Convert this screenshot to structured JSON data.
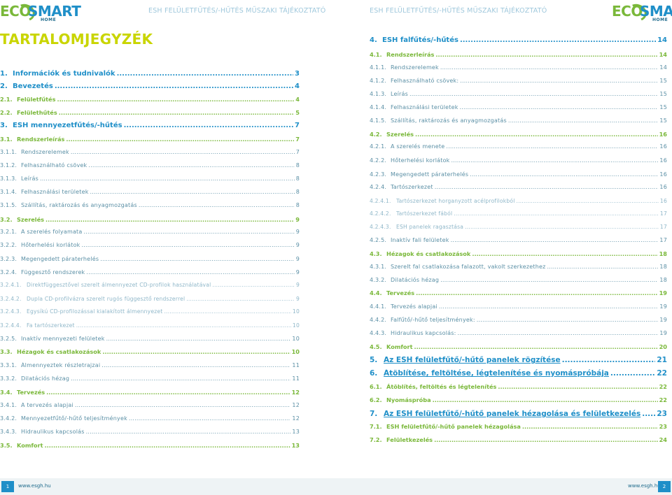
{
  "header": {
    "left_text": "ESH FELÜLETFŰTÉS/-HŰTÉS MŰSZAKI TÁJÉKOZTATÓ",
    "right_text": "ESH FELÜLETFŰTÉS/-HŰTÉS MŰSZAKI TÁJÉKOZTATÓ",
    "logo": {
      "eco": "ECO",
      "smart": "SMART",
      "home": "HOME"
    }
  },
  "toc_title": "TARTALOMJEGYZÉK",
  "left_toc": [
    {
      "level": 1,
      "num": "1.",
      "text": "Információk és tudnivalók",
      "page": "3"
    },
    {
      "level": 1,
      "num": "2.",
      "text": "Bevezetés",
      "page": "4"
    },
    {
      "level": 2,
      "num": "2.1.",
      "text": "Felületfűtés",
      "page": "4"
    },
    {
      "level": 2,
      "num": "2.2.",
      "text": "Felülethűtés",
      "page": "5"
    },
    {
      "level": 1,
      "num": "3.",
      "text": "ESH mennyezetfűtés/-hűtés",
      "page": "7"
    },
    {
      "level": 2,
      "num": "3.1.",
      "text": "Rendszerleírás",
      "page": "7"
    },
    {
      "level": 3,
      "num": "3.1.1.",
      "text": "Rendszerelemek",
      "page": "7"
    },
    {
      "level": 3,
      "num": "3.1.2.",
      "text": "Felhasználható csövek",
      "page": "8"
    },
    {
      "level": 3,
      "num": "3.1.3.",
      "text": "Leírás",
      "page": "8"
    },
    {
      "level": 3,
      "num": "3.1.4.",
      "text": "Felhasználási területek",
      "page": "8"
    },
    {
      "level": 3,
      "num": "3.1.5.",
      "text": "Szállítás, raktározás és anyagmozgatás",
      "page": "8"
    },
    {
      "level": 2,
      "num": "3.2.",
      "text": "Szerelés",
      "page": "9"
    },
    {
      "level": 3,
      "num": "3.2.1.",
      "text": "A szerelés folyamata",
      "page": "9"
    },
    {
      "level": 3,
      "num": "3.2.2.",
      "text": "Hőterhelési korlátok",
      "page": "9"
    },
    {
      "level": 3,
      "num": "3.2.3.",
      "text": "Megengedett páraterhelés",
      "page": "9"
    },
    {
      "level": 3,
      "num": "3.2.4.",
      "text": "Függesztő rendszerek",
      "page": "9"
    },
    {
      "level": 4,
      "num": "3.2.4.1.",
      "text": "Direktfüggesztővel szerelt álmennyezet CD-profilok használatával",
      "page": "9"
    },
    {
      "level": 4,
      "num": "3.2.4.2.",
      "text": "Dupla CD-profilvázra szerelt rugós függesztő rendszerrel",
      "page": "9"
    },
    {
      "level": 4,
      "num": "3.2.4.3.",
      "text": "Egysíkú CD-profilozással kialakított álmennyezet",
      "page": "10"
    },
    {
      "level": 4,
      "num": "3.2.4.4.",
      "text": "Fa tartószerkezet",
      "page": "10"
    },
    {
      "level": 3,
      "num": "3.2.5.",
      "text": "Inaktív mennyezeti felületek",
      "page": "10"
    },
    {
      "level": 2,
      "num": "3.3.",
      "text": "Hézagok és csatlakozások",
      "page": "10"
    },
    {
      "level": 3,
      "num": "3.3.1.",
      "text": "Álmennyeztek részletrajzai",
      "page": "11"
    },
    {
      "level": 3,
      "num": "3.3.2.",
      "text": "Dilatációs hézag",
      "page": "11"
    },
    {
      "level": 2,
      "num": "3.4.",
      "text": "Tervezés",
      "page": "12"
    },
    {
      "level": 3,
      "num": "3.4.1.",
      "text": "A tervezés alapjai",
      "page": "12"
    },
    {
      "level": 3,
      "num": "3.4.2.",
      "text": "Mennyezetfűtő/-hűtő teljesítmények",
      "page": "12"
    },
    {
      "level": 3,
      "num": "3.4.3.",
      "text": "Hidraulikus kapcsolás",
      "page": "13"
    },
    {
      "level": 2,
      "num": "3.5.",
      "text": "Komfort",
      "page": "13"
    }
  ],
  "right_toc": [
    {
      "level": 1,
      "num": "4.",
      "text": "ESH falfűtés/-hűtés",
      "page": "14"
    },
    {
      "level": 2,
      "num": "4.1.",
      "text": "Rendszerleírás",
      "page": "14"
    },
    {
      "level": 3,
      "num": "4.1.1.",
      "text": "Rendszerelemek",
      "page": "14"
    },
    {
      "level": 3,
      "num": "4.1.2.",
      "text": "Felhasználható csövek:",
      "page": "15"
    },
    {
      "level": 3,
      "num": "4.1.3.",
      "text": "Leírás",
      "page": "15"
    },
    {
      "level": 3,
      "num": "4.1.4.",
      "text": "Felhasználási területek",
      "page": "15"
    },
    {
      "level": 3,
      "num": "4.1.5.",
      "text": "Szállítás, raktározás és anyagmozgatás",
      "page": "15"
    },
    {
      "level": 2,
      "num": "4.2.",
      "text": "Szerelés",
      "page": "16"
    },
    {
      "level": 3,
      "num": "4.2.1.",
      "text": "A szerelés menete",
      "page": "16"
    },
    {
      "level": 3,
      "num": "4.2.2.",
      "text": "Hőterhelési korlátok",
      "page": "16"
    },
    {
      "level": 3,
      "num": "4.2.3.",
      "text": "Megengedett páraterhelés",
      "page": "16"
    },
    {
      "level": 3,
      "num": "4.2.4.",
      "text": "Tartószerkezet",
      "page": "16"
    },
    {
      "level": 4,
      "num": "4.2.4.1.",
      "text": "Tartószerkezet horganyzott acélprofilokból",
      "page": "16"
    },
    {
      "level": 4,
      "num": "4.2.4.2.",
      "text": "Tartószerkezet fából",
      "page": "17"
    },
    {
      "level": 4,
      "num": "4.2.4.3.",
      "text": "ESH panelek ragasztása",
      "page": "17"
    },
    {
      "level": 3,
      "num": "4.2.5.",
      "text": "Inaktív fali felületek",
      "page": "17"
    },
    {
      "level": 2,
      "num": "4.3.",
      "text": "Hézagok és csatlakozások",
      "page": "18"
    },
    {
      "level": 3,
      "num": "4.3.1.",
      "text": "Szerelt fal csatlakozása falazott, vakolt szerkezethez",
      "page": "18"
    },
    {
      "level": 3,
      "num": "4.3.2.",
      "text": "Dilatációs hézag",
      "page": "18"
    },
    {
      "level": 2,
      "num": "4.4.",
      "text": "Tervezés",
      "page": "19"
    },
    {
      "level": 3,
      "num": "4.4.1.",
      "text": "Tervezés alapjai",
      "page": "19"
    },
    {
      "level": 3,
      "num": "4.4.2.",
      "text": "Falfűtő/-hűtő teljesítmények:",
      "page": "19"
    },
    {
      "level": 3,
      "num": "4.4.3.",
      "text": "Hidraulikus kapcsolás:",
      "page": "19"
    },
    {
      "level": 2,
      "num": "4.5.",
      "text": "Komfort",
      "page": "20"
    },
    {
      "level": 5,
      "num": "5.",
      "text": "Az ESH felületfűtő/-hűtő panelek rögzítése",
      "page": "21"
    },
    {
      "level": 5,
      "num": "6.",
      "text": "Átöblítése, feltöltése, légtelenítése és nyomáspróbája",
      "page": "22"
    },
    {
      "level": 2,
      "num": "6.1.",
      "text": "Átöblítés, feltöltés és légtelenítés",
      "page": "22"
    },
    {
      "level": 2,
      "num": "6.2.",
      "text": "Nyomáspróba",
      "page": "22"
    },
    {
      "level": 5,
      "num": "7.",
      "text": "Az ESH felületfűtő/-hűtő panelek hézagolása és felületkezelés",
      "page": "23"
    },
    {
      "level": 2,
      "num": "7.1.",
      "text": "ESH felületfűtő/-hűtő panelek hézagolása",
      "page": "23"
    },
    {
      "level": 2,
      "num": "7.2.",
      "text": "Felületkezelés",
      "page": "24"
    }
  ],
  "footer": {
    "left_page_num": "1",
    "right_page_num": "2",
    "left_url": "www.esgh.hu",
    "right_url": "www.esgh.hu"
  }
}
